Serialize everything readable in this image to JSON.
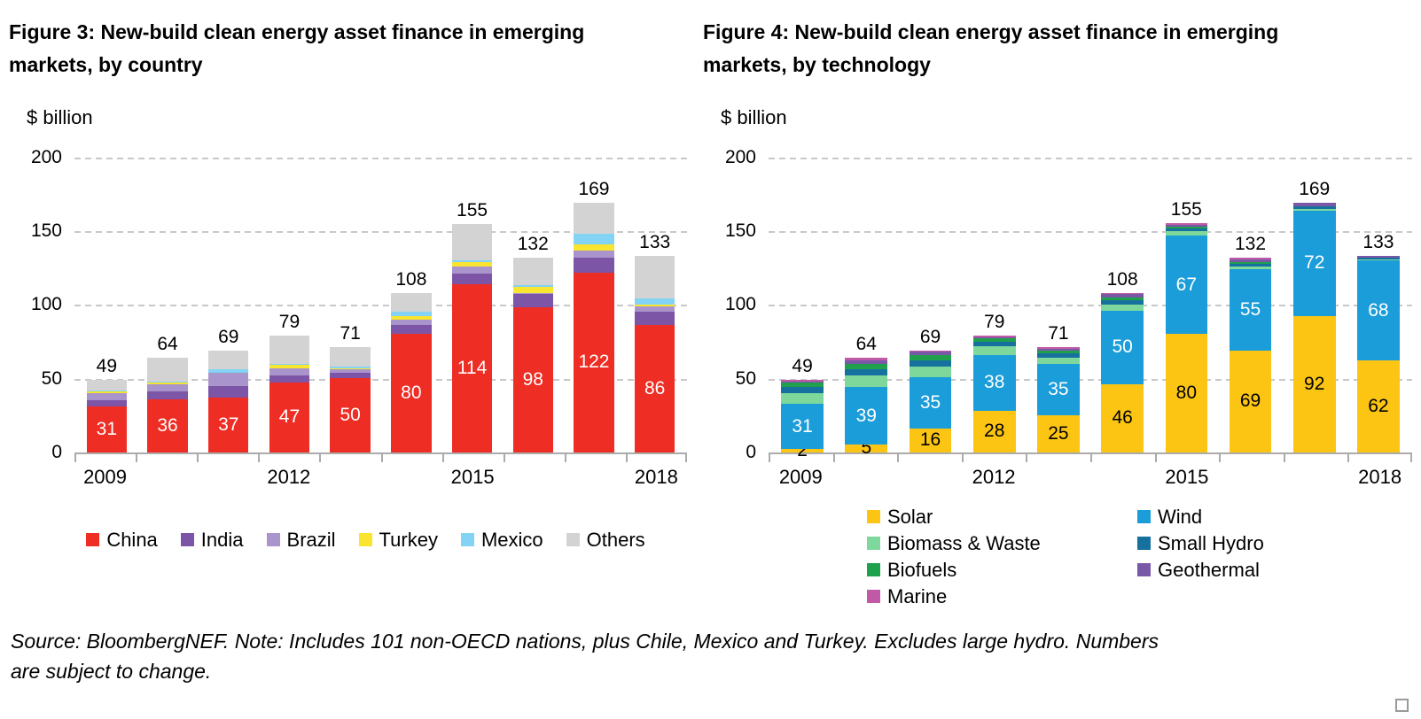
{
  "source_note": {
    "full": "Source: BloombergNEF. Note: Includes 101 non-OECD nations, plus Chile, Mexico and Turkey. Excludes large hydro. Numbers are subject to change.",
    "line1": "Source: BloombergNEF. Note: Includes 101 non-OECD nations, plus Chile, Mexico and Turkey. Excludes large hydro. Numbers",
    "line2": "are subject to change."
  },
  "chart_data": [
    {
      "id": "fig3",
      "type": "bar",
      "stacked": true,
      "title": "Figure 3: New-build clean energy asset finance in emerging markets, by country",
      "title_lines": [
        "Figure 3: New-build clean energy asset finance in emerging",
        "markets, by country"
      ],
      "ylabel": "$ billion",
      "ylim": [
        0,
        200
      ],
      "yticks": [
        0,
        50,
        100,
        150,
        200
      ],
      "grid": "dashed-horizontal",
      "grid_color": "#c8c8c8",
      "axis_color": "#ababab",
      "categories": [
        "2009",
        "2010",
        "2011",
        "2012",
        "2013",
        "2014",
        "2015",
        "2016",
        "2017",
        "2018"
      ],
      "xtick_label_indices": [
        0,
        3,
        6,
        9
      ],
      "totals": [
        49,
        64,
        69,
        79,
        71,
        108,
        155,
        132,
        169,
        133
      ],
      "series": [
        {
          "name": "China",
          "color": "#ee2d24",
          "label_color": "#ffffff",
          "show_value_labels": true,
          "values": [
            31,
            36,
            37,
            47,
            50,
            80,
            114,
            98,
            122,
            86
          ]
        },
        {
          "name": "India",
          "color": "#7d55a7",
          "values": [
            4,
            5,
            8,
            5,
            4,
            6,
            7,
            9,
            10,
            9
          ]
        },
        {
          "name": "Brazil",
          "color": "#a995cc",
          "values": [
            5,
            5,
            9,
            5,
            2,
            4,
            5,
            1,
            5,
            4
          ]
        },
        {
          "name": "Turkey",
          "color": "#f9e42f",
          "values": [
            1,
            1,
            0,
            2,
            1,
            2,
            3,
            4,
            4,
            1
          ]
        },
        {
          "name": "Mexico",
          "color": "#82d3f4",
          "values": [
            1,
            1,
            2,
            1,
            1,
            3,
            1,
            1,
            7,
            4
          ]
        },
        {
          "name": "Others",
          "color": "#d3d3d3",
          "values": [
            7,
            16,
            13,
            19,
            13,
            13,
            25,
            19,
            21,
            29
          ]
        }
      ],
      "legend": {
        "layout": "row",
        "order": [
          "China",
          "India",
          "Brazil",
          "Turkey",
          "Mexico",
          "Others"
        ]
      }
    },
    {
      "id": "fig4",
      "type": "bar",
      "stacked": true,
      "title": "Figure 4: New-build clean energy asset finance in emerging markets, by technology",
      "title_lines": [
        "Figure 4: New-build clean energy asset finance in emerging",
        "markets, by technology"
      ],
      "ylabel": "$ billion",
      "ylim": [
        0,
        200
      ],
      "yticks": [
        0,
        50,
        100,
        150,
        200
      ],
      "grid": "dashed-horizontal",
      "grid_color": "#c8c8c8",
      "axis_color": "#ababab",
      "categories": [
        "2009",
        "2010",
        "2011",
        "2012",
        "2013",
        "2014",
        "2015",
        "2016",
        "2017",
        "2018"
      ],
      "xtick_label_indices": [
        0,
        3,
        6,
        9
      ],
      "totals": [
        49,
        64,
        69,
        79,
        71,
        108,
        155,
        132,
        169,
        133
      ],
      "series": [
        {
          "name": "Solar",
          "color": "#fcc513",
          "label_color": "#000000",
          "show_value_labels": true,
          "values": [
            2,
            5,
            16,
            28,
            25,
            46,
            80,
            69,
            92,
            62
          ]
        },
        {
          "name": "Wind",
          "color": "#1b9dd9",
          "label_color": "#ffffff",
          "show_value_labels": true,
          "values": [
            31,
            39,
            35,
            38,
            35,
            50,
            67,
            55,
            72,
            68
          ]
        },
        {
          "name": "Biomass & Waste",
          "color": "#7ed79b",
          "values": [
            7,
            8,
            7,
            6,
            4,
            4,
            3,
            2,
            1,
            1
          ]
        },
        {
          "name": "Small Hydro",
          "color": "#17719f",
          "values": [
            4,
            4,
            4,
            3,
            3,
            3,
            2,
            2,
            2,
            1
          ]
        },
        {
          "name": "Biofuels",
          "color": "#1ea04c",
          "values": [
            3,
            4,
            4,
            2,
            2,
            2,
            1,
            1,
            0,
            0
          ]
        },
        {
          "name": "Geothermal",
          "color": "#7a58a8",
          "values": [
            1,
            2,
            2,
            1,
            1,
            2,
            1,
            2,
            2,
            1
          ]
        },
        {
          "name": "Marine",
          "color": "#c05aa6",
          "values": [
            1,
            2,
            1,
            1,
            1,
            1,
            1,
            1,
            0,
            0
          ]
        }
      ],
      "legend": {
        "layout": "columns",
        "columns": [
          [
            "Solar",
            "Biomass & Waste",
            "Biofuels",
            "Marine"
          ],
          [
            "Wind",
            "Small Hydro",
            "Geothermal"
          ]
        ]
      }
    }
  ]
}
